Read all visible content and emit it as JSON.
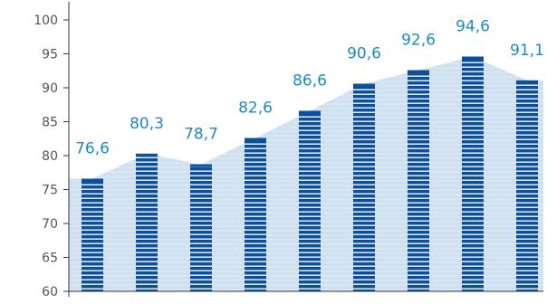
{
  "chart_data": {
    "type": "bar",
    "title": "",
    "xlabel": "",
    "ylabel": "",
    "ylim": [
      60,
      100
    ],
    "yticks": [
      60,
      65,
      70,
      75,
      80,
      85,
      90,
      95,
      100
    ],
    "ytick_labels": [
      "60",
      "65",
      "70",
      "75",
      "80",
      "85",
      "90",
      "95",
      "100"
    ],
    "values": [
      76.6,
      80.3,
      78.7,
      82.6,
      86.6,
      90.6,
      92.6,
      94.6,
      91.1
    ],
    "data_labels": [
      "76,6",
      "80,3",
      "78,7",
      "82,6",
      "86,6",
      "90,6",
      "92,6",
      "94,6",
      "91,1"
    ],
    "grid": false,
    "legend": "none",
    "bar_style": "horizontal stripes",
    "background": "filled area behind bars following the bar tops",
    "colors": {
      "bar": "#0d4f9a",
      "bar_stripe": "#ffffff",
      "area_fill": "#cfe0f0",
      "data_label": "#1b8ac9",
      "axis": "#333333",
      "tick_label": "#555555"
    }
  }
}
